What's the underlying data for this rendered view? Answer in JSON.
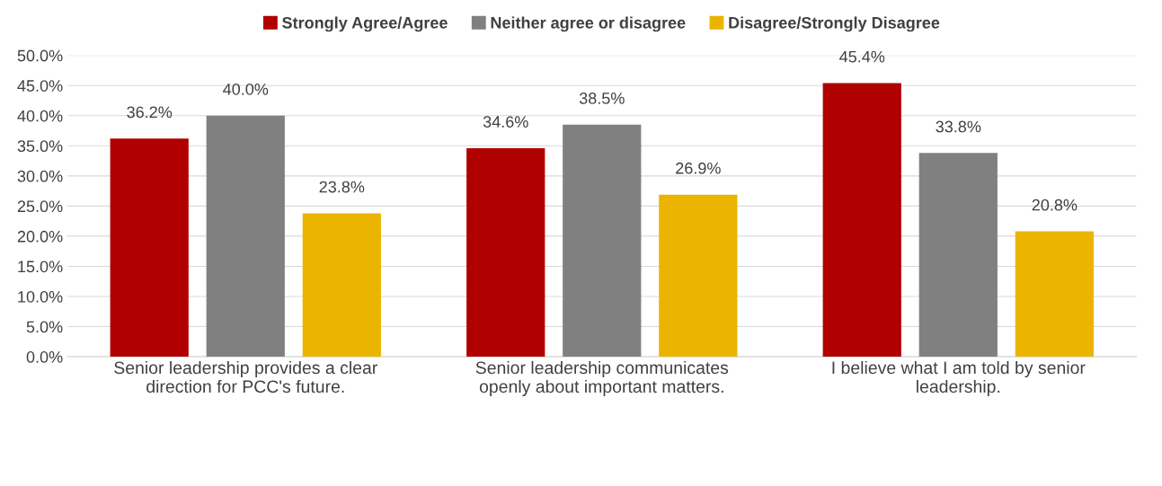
{
  "chart_data": {
    "type": "bar",
    "categories": [
      "Senior leadership provides a clear\ndirection for PCC's future.",
      "Senior leadership communicates\nopenly about important matters.",
      "I believe what I am told by senior\nleadership."
    ],
    "series": [
      {
        "name": "Strongly Agree/Agree",
        "color": "#b00000",
        "values": [
          36.2,
          34.6,
          45.4
        ],
        "value_labels": [
          "36.2%",
          "34.6%",
          "45.4%"
        ]
      },
      {
        "name": "Neither agree or disagree",
        "color": "#808080",
        "values": [
          40.0,
          38.5,
          33.8
        ],
        "value_labels": [
          "40.0%",
          "38.5%",
          "33.8%"
        ]
      },
      {
        "name": "Disagree/Strongly Disagree",
        "color": "#ebb400",
        "values": [
          23.8,
          26.9,
          20.8
        ],
        "value_labels": [
          "23.8%",
          "26.9%",
          "20.8%"
        ]
      }
    ],
    "ylim": [
      0,
      50
    ],
    "yticks": [
      {
        "value": 0,
        "label": "0.0%"
      },
      {
        "value": 5,
        "label": "5.0%"
      },
      {
        "value": 10,
        "label": "10.0%"
      },
      {
        "value": 15,
        "label": "15.0%"
      },
      {
        "value": 20,
        "label": "20.0%"
      },
      {
        "value": 25,
        "label": "25.0%"
      },
      {
        "value": 30,
        "label": "30.0%"
      },
      {
        "value": 35,
        "label": "35.0%"
      },
      {
        "value": 40,
        "label": "40.0%"
      },
      {
        "value": 45,
        "label": "45.0%"
      },
      {
        "value": 50,
        "label": "50.0%"
      }
    ],
    "grid": "y",
    "legend": "top"
  }
}
